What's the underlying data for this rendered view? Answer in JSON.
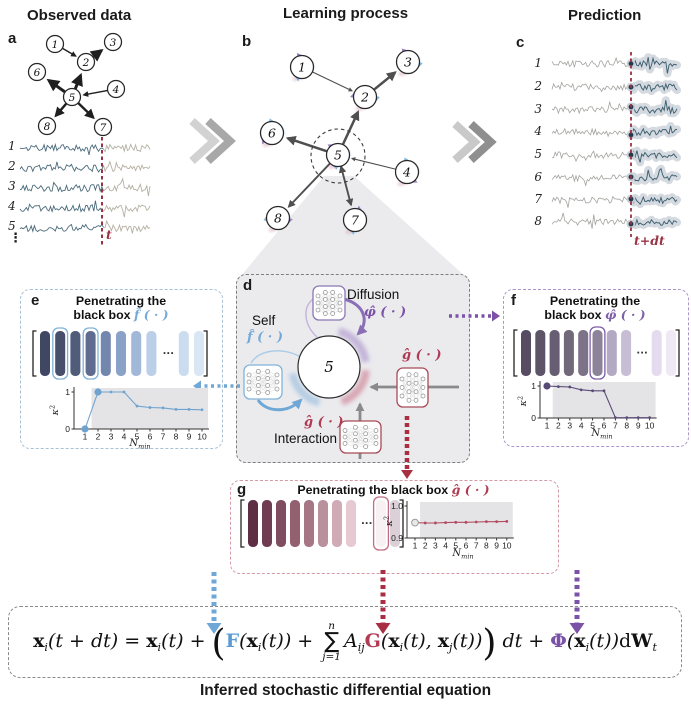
{
  "figure": {
    "headers": {
      "observed": "Observed data",
      "learning": "Learning process",
      "prediction": "Prediction"
    },
    "caption": "Inferred stochastic differential equation"
  },
  "panel_a": {
    "label": "a",
    "trace_labels": [
      "1",
      "2",
      "3",
      "4",
      "5"
    ],
    "ellipsis": "⋮",
    "time_marker": "t"
  },
  "panel_b": {
    "label": "b"
  },
  "panel_c": {
    "label": "c",
    "trace_labels": [
      "1",
      "2",
      "3",
      "4",
      "5",
      "6",
      "7",
      "8"
    ],
    "time_marker": "t+dt"
  },
  "panel_d": {
    "label": "d",
    "node": "5",
    "self": "Self",
    "diffusion": "Diffusion",
    "interaction": "Interaction",
    "f_hat": "f̂ ( · )",
    "phi_hat": "φ̂ ( · )",
    "g_hat": "ĝ ( · )"
  },
  "panel_e": {
    "label": "e",
    "title_line1": "Penetrating the",
    "title_line2": "black box",
    "func": "f̂ ( · )",
    "bars": {
      "colors": [
        "#3f4763",
        "#474f6c",
        "#515b7a",
        "#5f6c8f",
        "#7386ae",
        "#8aa1c8",
        "#a2b8d9",
        "#bccfe8",
        "#ccdcf0",
        "#d9e7f5"
      ],
      "outlined": [
        2,
        4
      ],
      "outline_color": "#7fb3d9",
      "ellipsis": "···"
    }
  },
  "panel_f": {
    "label": "f",
    "title_line1": "Penetrating the",
    "title_line2": "black box",
    "func": "φ̂ ( · )",
    "bars": {
      "colors": [
        "#564d62",
        "#5d5468",
        "#675e73",
        "#716879",
        "#7d7389",
        "#8c8399",
        "#b3a9c2",
        "#c7bdd5",
        "#e4dcee",
        "#efe9f5"
      ],
      "outlined": [
        6
      ],
      "outline_color": "#7d5fa8",
      "ellipsis": "···"
    }
  },
  "panel_g": {
    "label": "g",
    "title": "Penetrating the black box",
    "func": "ĝ ( · )",
    "bars": {
      "colors": [
        "#5e2e44",
        "#6f3c52",
        "#7f4c60",
        "#936070",
        "#a67685",
        "#bb909d",
        "#d0abb6",
        "#e6c9d1",
        "#f8f1f3",
        "#dbd0d8"
      ],
      "outlined": [
        9
      ],
      "outline_color": "#c26d84",
      "ellipsis": "···"
    }
  },
  "network": {
    "node_labels": [
      "1",
      "2",
      "3",
      "4",
      "5",
      "6",
      "7",
      "8"
    ],
    "focus_node": "5",
    "edges": [
      {
        "from": 1,
        "to": 2,
        "w": 1
      },
      {
        "from": 2,
        "to": 3,
        "w": 3
      },
      {
        "from": 5,
        "to": 2,
        "w": 3
      },
      {
        "from": 4,
        "to": 5,
        "w": 1
      },
      {
        "from": 5,
        "to": 6,
        "w": 3
      },
      {
        "from": 5,
        "to": 8,
        "w": 2
      },
      {
        "from": 5,
        "to": 7,
        "w": 2
      }
    ]
  },
  "colors": {
    "blue": "#5b9bd5",
    "blue_light": "#6fa8d6",
    "purple": "#7a52a8",
    "purple_mid": "#8a6fb5",
    "red": "#a82e42",
    "crimson": "#b23a55",
    "marker_red": "#993344",
    "func_e": "#74a9d8",
    "func_f": "#7d5fa8",
    "func_g": "#b03a52",
    "trace_left": "#4b6b7c",
    "trace_right_a": "#b6b1a4",
    "trace_gray": "#a3a39f",
    "trace_blue": "#3e5f70",
    "band": "#c6ced6"
  },
  "equation": {
    "segments": [
      {
        "t": "x",
        "c": "vec"
      },
      {
        "t": "i",
        "c": "sub"
      },
      {
        "t": "(t + dt) = ",
        "c": "it"
      },
      {
        "t": "x",
        "c": "vec"
      },
      {
        "t": "i",
        "c": "sub"
      },
      {
        "t": "(t) + ",
        "c": "it"
      },
      {
        "t": "(",
        "c": "big"
      },
      {
        "t": "F",
        "c": "cF"
      },
      {
        "t": "(",
        "c": "it"
      },
      {
        "t": "x",
        "c": "vec"
      },
      {
        "t": "i",
        "c": "sub"
      },
      {
        "t": "(t)",
        "c": "it"
      },
      {
        "t": ") + ",
        "c": "it"
      },
      {
        "sum": {
          "top": "n",
          "sym": "∑",
          "bot": "j=1"
        }
      },
      {
        "t": "A",
        "c": "it"
      },
      {
        "t": "ij",
        "c": "sub"
      },
      {
        "t": "G",
        "c": "cG"
      },
      {
        "t": "(",
        "c": "it"
      },
      {
        "t": "x",
        "c": "vec"
      },
      {
        "t": "i",
        "c": "sub"
      },
      {
        "t": "(t), ",
        "c": "it"
      },
      {
        "t": "x",
        "c": "vec"
      },
      {
        "t": "j",
        "c": "sub"
      },
      {
        "t": "(t)",
        "c": "it"
      },
      {
        "t": ")",
        "c": "it"
      },
      {
        "t": ")",
        "c": "big"
      },
      {
        "t": " dt + ",
        "c": "it"
      },
      {
        "t": "Φ",
        "c": "cP"
      },
      {
        "t": "(",
        "c": "it"
      },
      {
        "t": "x",
        "c": "vec"
      },
      {
        "t": "i",
        "c": "sub"
      },
      {
        "t": "(t)",
        "c": "it"
      },
      {
        "t": ")",
        "c": "it"
      },
      {
        "t": "d",
        "c": "up"
      },
      {
        "t": "W",
        "c": "vec"
      },
      {
        "t": "t",
        "c": "sub"
      }
    ]
  },
  "chart_data": [
    {
      "id": "e",
      "type": "line",
      "title": "Penetrating the black box f̂(·)",
      "xlabel": "N",
      "xlabel_sub": "min",
      "ylabel": "κ",
      "ylabel_sup": "2",
      "x": [
        1,
        2,
        3,
        4,
        5,
        6,
        7,
        8,
        9,
        10
      ],
      "y": [
        0,
        1,
        1,
        1,
        0.62,
        0.58,
        0.57,
        0.53,
        0.53,
        0.52
      ],
      "ylim": [
        0,
        1
      ],
      "yticks": [
        0,
        1
      ],
      "ytick_labels": [
        "0",
        "1"
      ],
      "color": "#6fa3cf",
      "big_points": [
        1,
        2
      ],
      "shaded_from": 1.5,
      "legend": "none"
    },
    {
      "id": "f",
      "type": "line",
      "title": "Penetrating the black box φ̂(·)",
      "xlabel": "N",
      "xlabel_sub": "min",
      "ylabel": "κ",
      "ylabel_sup": "2",
      "x": [
        1,
        2,
        3,
        4,
        5,
        6,
        7,
        8,
        9,
        10
      ],
      "y": [
        1,
        0.98,
        0.97,
        0.88,
        0.85,
        0.85,
        0.01,
        0.01,
        0.01,
        0.01
      ],
      "ylim": [
        0,
        1
      ],
      "yticks": [
        0,
        1
      ],
      "ytick_labels": [
        "0",
        "1"
      ],
      "color": "#5a4a78",
      "big_points": [
        1
      ],
      "shaded_from": 1.5,
      "legend": "none"
    },
    {
      "id": "g",
      "type": "line",
      "title": "Penetrating the black box ĝ(·)",
      "xlabel": "N",
      "xlabel_sub": "min",
      "ylabel": "κ",
      "ylabel_sup": "2",
      "x": [
        1,
        2,
        3,
        4,
        5,
        6,
        7,
        8,
        9,
        10
      ],
      "y": [
        0.948,
        0.947,
        0.947,
        0.948,
        0.949,
        0.949,
        0.95,
        0.951,
        0.951,
        0.952
      ],
      "ylim": [
        0.9,
        1.0
      ],
      "yticks": [
        0.9,
        1.0
      ],
      "ytick_labels": [
        "0.9",
        "1.0"
      ],
      "color": "#b24a60",
      "big_points": [
        1
      ],
      "shaded_from": 1.5,
      "legend": "none"
    }
  ]
}
